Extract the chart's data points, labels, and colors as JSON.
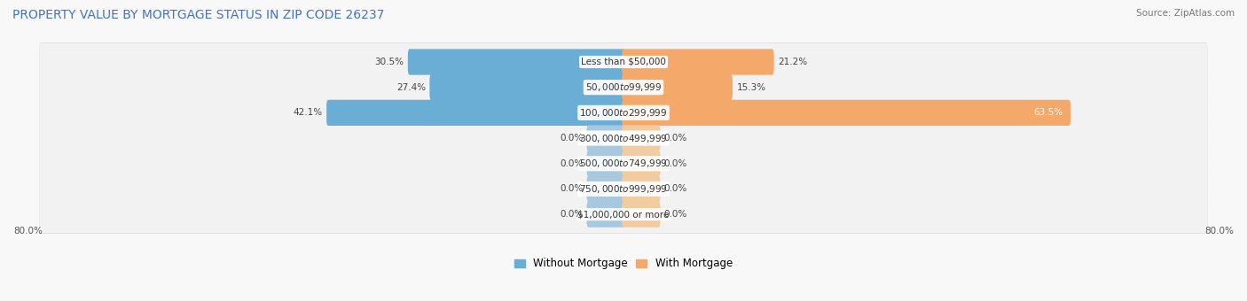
{
  "title": "PROPERTY VALUE BY MORTGAGE STATUS IN ZIP CODE 26237",
  "source": "Source: ZipAtlas.com",
  "categories": [
    "Less than $50,000",
    "$50,000 to $99,999",
    "$100,000 to $299,999",
    "$300,000 to $499,999",
    "$500,000 to $749,999",
    "$750,000 to $999,999",
    "$1,000,000 or more"
  ],
  "without_mortgage": [
    30.5,
    27.4,
    42.1,
    0.0,
    0.0,
    0.0,
    0.0
  ],
  "with_mortgage": [
    21.2,
    15.3,
    63.5,
    0.0,
    0.0,
    0.0,
    0.0
  ],
  "without_mortgage_color": "#6aaed6",
  "with_mortgage_color": "#f4a96a",
  "without_mortgage_zero_color": "#a8c8e0",
  "with_mortgage_zero_color": "#f2cba0",
  "axis_label_left": "80.0%",
  "axis_label_right": "80.0%",
  "axis_max": 80.0,
  "zero_bar_width": 5.0,
  "title_color": "#4472c4",
  "title_fontsize": 10,
  "source_fontsize": 7.5,
  "bar_label_fontsize": 7.5,
  "category_fontsize": 7.5,
  "legend_fontsize": 8.5,
  "row_bg_color": "#efefef",
  "fig_bg_color": "#f8f8f8"
}
